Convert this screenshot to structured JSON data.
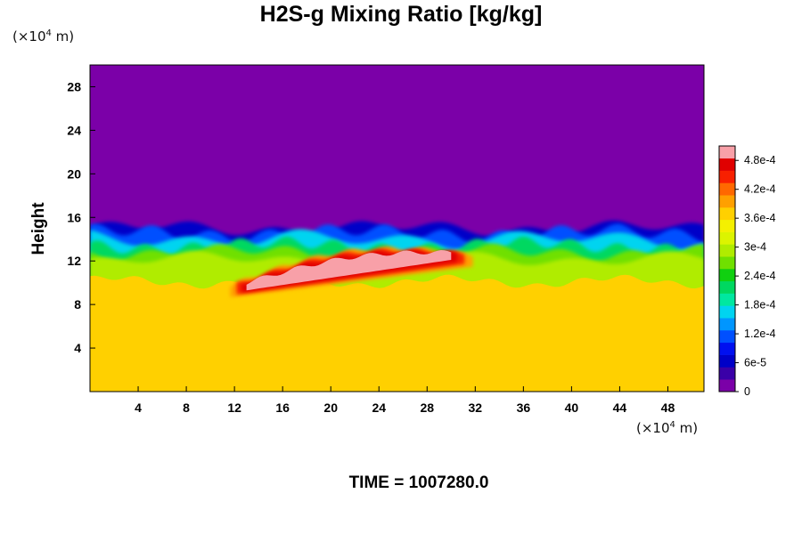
{
  "chart_data": {
    "type": "heatmap",
    "title": "H2S-g Mixing Ratio [kg/kg]",
    "ylabel": "Height",
    "xlabel": "",
    "x_unit_label": "m",
    "y_unit_label": "m",
    "unit_scale_exponent": "4",
    "x_ticks": [
      "4",
      "8",
      "12",
      "16",
      "20",
      "24",
      "28",
      "32",
      "36",
      "40",
      "44",
      "48"
    ],
    "y_ticks": [
      "4",
      "8",
      "12",
      "16",
      "20",
      "24",
      "28"
    ],
    "xlim": [
      0,
      51
    ],
    "ylim": [
      0,
      30
    ],
    "field": {
      "upper_layer_value": 0,
      "lower_layer_value": 0.00036,
      "mixing_zone_height_range": [
        9.5,
        15
      ],
      "max_region": {
        "x_range": [
          13,
          30
        ],
        "height_range": [
          9.5,
          13
        ],
        "value": 0.0005
      }
    },
    "colorbar": {
      "tick_labels": [
        "0",
        "6e-5",
        "1.2e-4",
        "1.8e-4",
        "2.4e-4",
        "3e-4",
        "3.6e-4",
        "4.2e-4",
        "4.8e-4"
      ],
      "tick_values": [
        0,
        6e-05,
        0.00012,
        0.00018,
        0.00024,
        0.0003,
        0.00036,
        0.00042,
        0.00048
      ],
      "range": [
        0,
        0.00051
      ],
      "colors": [
        "#7b00a8",
        "#3a00a8",
        "#0000c8",
        "#0010f0",
        "#0050ff",
        "#0096ff",
        "#00d4f0",
        "#00e8a0",
        "#00d860",
        "#10d010",
        "#70e000",
        "#b0ec00",
        "#dcf400",
        "#f4f000",
        "#ffd000",
        "#ffa000",
        "#ff6800",
        "#f82000",
        "#e00000",
        "#f8a0a8"
      ]
    },
    "footer_text": "TIME = 1007280.0"
  }
}
